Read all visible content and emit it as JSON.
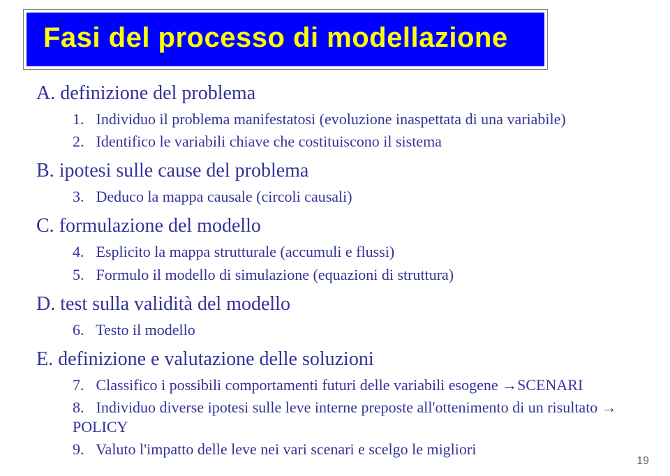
{
  "title": "Fasi del processo di modellazione",
  "colors": {
    "title_bg": "#0000ff",
    "title_text": "#ffff00",
    "body_text": "#333399",
    "page_bg": "#ffffff"
  },
  "typography": {
    "title_font": "Arial",
    "title_size_pt": 30,
    "title_weight": "bold",
    "body_font": "Times New Roman",
    "section_size_pt": 21,
    "sub_size_pt": 17
  },
  "sections": [
    {
      "marker": "A.",
      "label": "definizione del problema",
      "items": [
        {
          "num": "1.",
          "text": "Individuo il problema manifestatosi (evoluzione inaspettata di una variabile)"
        },
        {
          "num": "2.",
          "text": "Identifico le variabili chiave che costituiscono il sistema"
        }
      ]
    },
    {
      "marker": "B.",
      "label": "ipotesi sulle cause del problema",
      "items": [
        {
          "num": "3.",
          "text": "Deduco la mappa causale (circoli causali)"
        }
      ]
    },
    {
      "marker": "C.",
      "label": "formulazione del modello",
      "items": [
        {
          "num": "4.",
          "text": "Esplicito la mappa strutturale (accumuli e flussi)"
        },
        {
          "num": "5.",
          "text": "Formulo il modello di simulazione (equazioni di struttura)"
        }
      ]
    },
    {
      "marker": "D.",
      "label": "test sulla validità del modello",
      "items": [
        {
          "num": "6.",
          "text": "Testo il modello"
        }
      ]
    },
    {
      "marker": "E.",
      "label": "definizione e valutazione delle soluzioni",
      "items": [
        {
          "num": "7.",
          "text": "Classifico i possibili comportamenti futuri delle variabili esogene →SCENARI"
        },
        {
          "num": "8.",
          "text": "Individuo diverse ipotesi sulle leve interne preposte all'ottenimento di un risultato → POLICY"
        },
        {
          "num": "9.",
          "text": "Valuto l'impatto delle leve nei vari scenari e scelgo le migliori"
        }
      ]
    }
  ],
  "page_number": "19"
}
